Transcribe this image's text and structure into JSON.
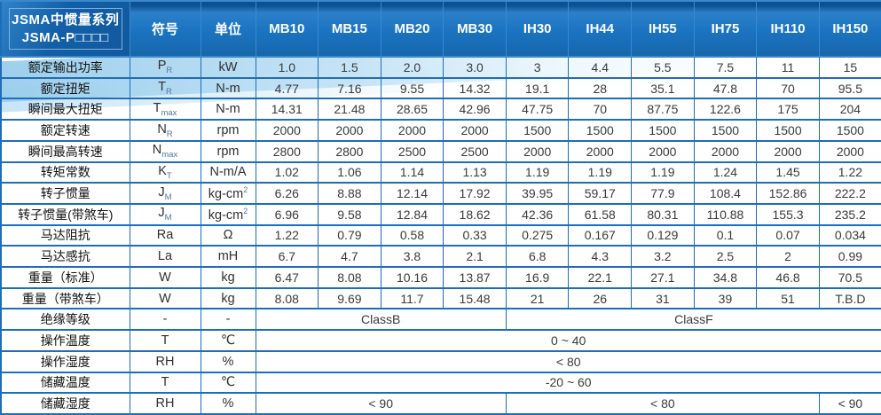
{
  "header": {
    "title_line1": "JSMA中惯量系列",
    "title_line2": "JSMA-P□□□□",
    "symbol_col": "符号",
    "unit_col": "单位",
    "models": [
      "MB10",
      "MB15",
      "MB20",
      "MB30",
      "IH30",
      "IH44",
      "IH55",
      "IH75",
      "IH110",
      "IH150"
    ]
  },
  "colors": {
    "header_blue": "#1b73c1",
    "header_top_strip": "#0c5191",
    "title_cell_blue": "#135fa7",
    "title_border_blue": "#7fb2de",
    "grid_border_blue": "#1e6eb7",
    "swoosh_blue": "#8bc7e9",
    "subscript_blue": "#52779e"
  },
  "rows": [
    {
      "label": "额定输出功率",
      "symbol": {
        "base": "P",
        "sub": "R"
      },
      "unit": {
        "text": "kW",
        "sup": ""
      },
      "values": [
        "1.0",
        "1.5",
        "2.0",
        "3.0",
        "3",
        "4.4",
        "5.5",
        "7.5",
        "11",
        "15"
      ]
    },
    {
      "label": "额定扭矩",
      "symbol": {
        "base": "T",
        "sub": "R"
      },
      "unit": {
        "text": "N-m",
        "sup": ""
      },
      "values": [
        "4.77",
        "7.16",
        "9.55",
        "14.32",
        "19.1",
        "28",
        "35.1",
        "47.8",
        "70",
        "95.5"
      ]
    },
    {
      "label": "瞬间最大扭矩",
      "symbol": {
        "base": "T",
        "sub": "max"
      },
      "unit": {
        "text": "N-m",
        "sup": ""
      },
      "values": [
        "14.31",
        "21.48",
        "28.65",
        "42.96",
        "47.75",
        "70",
        "87.75",
        "122.6",
        "175",
        "204"
      ]
    },
    {
      "label": "额定转速",
      "symbol": {
        "base": "N",
        "sub": "R"
      },
      "unit": {
        "text": "rpm",
        "sup": ""
      },
      "values": [
        "2000",
        "2000",
        "2000",
        "2000",
        "1500",
        "1500",
        "1500",
        "1500",
        "1500",
        "1500"
      ]
    },
    {
      "label": "瞬间最高转速",
      "symbol": {
        "base": "N",
        "sub": "max"
      },
      "unit": {
        "text": "rpm",
        "sup": ""
      },
      "values": [
        "2800",
        "2800",
        "2500",
        "2500",
        "2000",
        "2000",
        "2000",
        "2000",
        "2000",
        "2000"
      ]
    },
    {
      "label": "转矩常数",
      "symbol": {
        "base": "K",
        "sub": "T"
      },
      "unit": {
        "text": "N-m/A",
        "sup": ""
      },
      "values": [
        "1.02",
        "1.06",
        "1.14",
        "1.13",
        "1.19",
        "1.19",
        "1.19",
        "1.24",
        "1.45",
        "1.22"
      ]
    },
    {
      "label": "转子惯量",
      "symbol": {
        "base": "J",
        "sub": "M"
      },
      "unit": {
        "text": "kg-cm",
        "sup": "2"
      },
      "values": [
        "6.26",
        "8.88",
        "12.14",
        "17.92",
        "39.95",
        "59.17",
        "77.9",
        "108.4",
        "152.86",
        "222.2"
      ]
    },
    {
      "label": "转子惯量(带煞车)",
      "symbol": {
        "base": "J",
        "sub": "M"
      },
      "unit": {
        "text": "kg-cm",
        "sup": "2"
      },
      "values": [
        "6.96",
        "9.58",
        "12.84",
        "18.62",
        "42.36",
        "61.58",
        "80.31",
        "110.88",
        "155.3",
        "235.2"
      ]
    },
    {
      "label": "马达阻抗",
      "symbol": {
        "base": "Ra",
        "sub": ""
      },
      "unit": {
        "text": "Ω",
        "sup": ""
      },
      "values": [
        "1.22",
        "0.79",
        "0.58",
        "0.33",
        "0.275",
        "0.167",
        "0.129",
        "0.1",
        "0.07",
        "0.034"
      ]
    },
    {
      "label": "马达感抗",
      "symbol": {
        "base": "La",
        "sub": ""
      },
      "unit": {
        "text": "mH",
        "sup": ""
      },
      "values": [
        "6.7",
        "4.7",
        "3.8",
        "2.1",
        "6.8",
        "4.3",
        "3.2",
        "2.5",
        "2",
        "0.99"
      ]
    },
    {
      "label": "重量（标准）",
      "symbol": {
        "base": "W",
        "sub": ""
      },
      "unit": {
        "text": "kg",
        "sup": ""
      },
      "values": [
        "6.47",
        "8.08",
        "10.16",
        "13.87",
        "16.9",
        "22.1",
        "27.1",
        "34.8",
        "46.8",
        "70.5"
      ]
    },
    {
      "label": "重量（带煞车）",
      "symbol": {
        "base": "W",
        "sub": ""
      },
      "unit": {
        "text": "kg",
        "sup": ""
      },
      "values": [
        "8.08",
        "9.69",
        "11.7",
        "15.48",
        "21",
        "26",
        "31",
        "39",
        "51",
        "T.B.D"
      ]
    },
    {
      "label": "绝缘等级",
      "symbol": {
        "base": "-",
        "sub": ""
      },
      "unit": {
        "text": "-",
        "sup": ""
      },
      "spans": [
        {
          "text": "ClassB",
          "cols": 4
        },
        {
          "text": "ClassF",
          "cols": 6
        }
      ]
    },
    {
      "label": "操作温度",
      "symbol": {
        "base": "T",
        "sub": ""
      },
      "unit": {
        "text": "℃",
        "sup": ""
      },
      "spans": [
        {
          "text": "0 ~ 40",
          "cols": 10
        }
      ]
    },
    {
      "label": "操作湿度",
      "symbol": {
        "base": "RH",
        "sub": ""
      },
      "unit": {
        "text": "%",
        "sup": ""
      },
      "spans": [
        {
          "text": "< 80",
          "cols": 10
        }
      ]
    },
    {
      "label": "储藏温度",
      "symbol": {
        "base": "T",
        "sub": ""
      },
      "unit": {
        "text": "℃",
        "sup": ""
      },
      "spans": [
        {
          "text": "-20 ~ 60",
          "cols": 10
        }
      ]
    },
    {
      "label": "储藏湿度",
      "symbol": {
        "base": "RH",
        "sub": ""
      },
      "unit": {
        "text": "%",
        "sup": ""
      },
      "spans": [
        {
          "text": "< 90",
          "cols": 4
        },
        {
          "text": "< 80",
          "cols": 5
        },
        {
          "text": "< 90",
          "cols": 1
        }
      ]
    }
  ]
}
